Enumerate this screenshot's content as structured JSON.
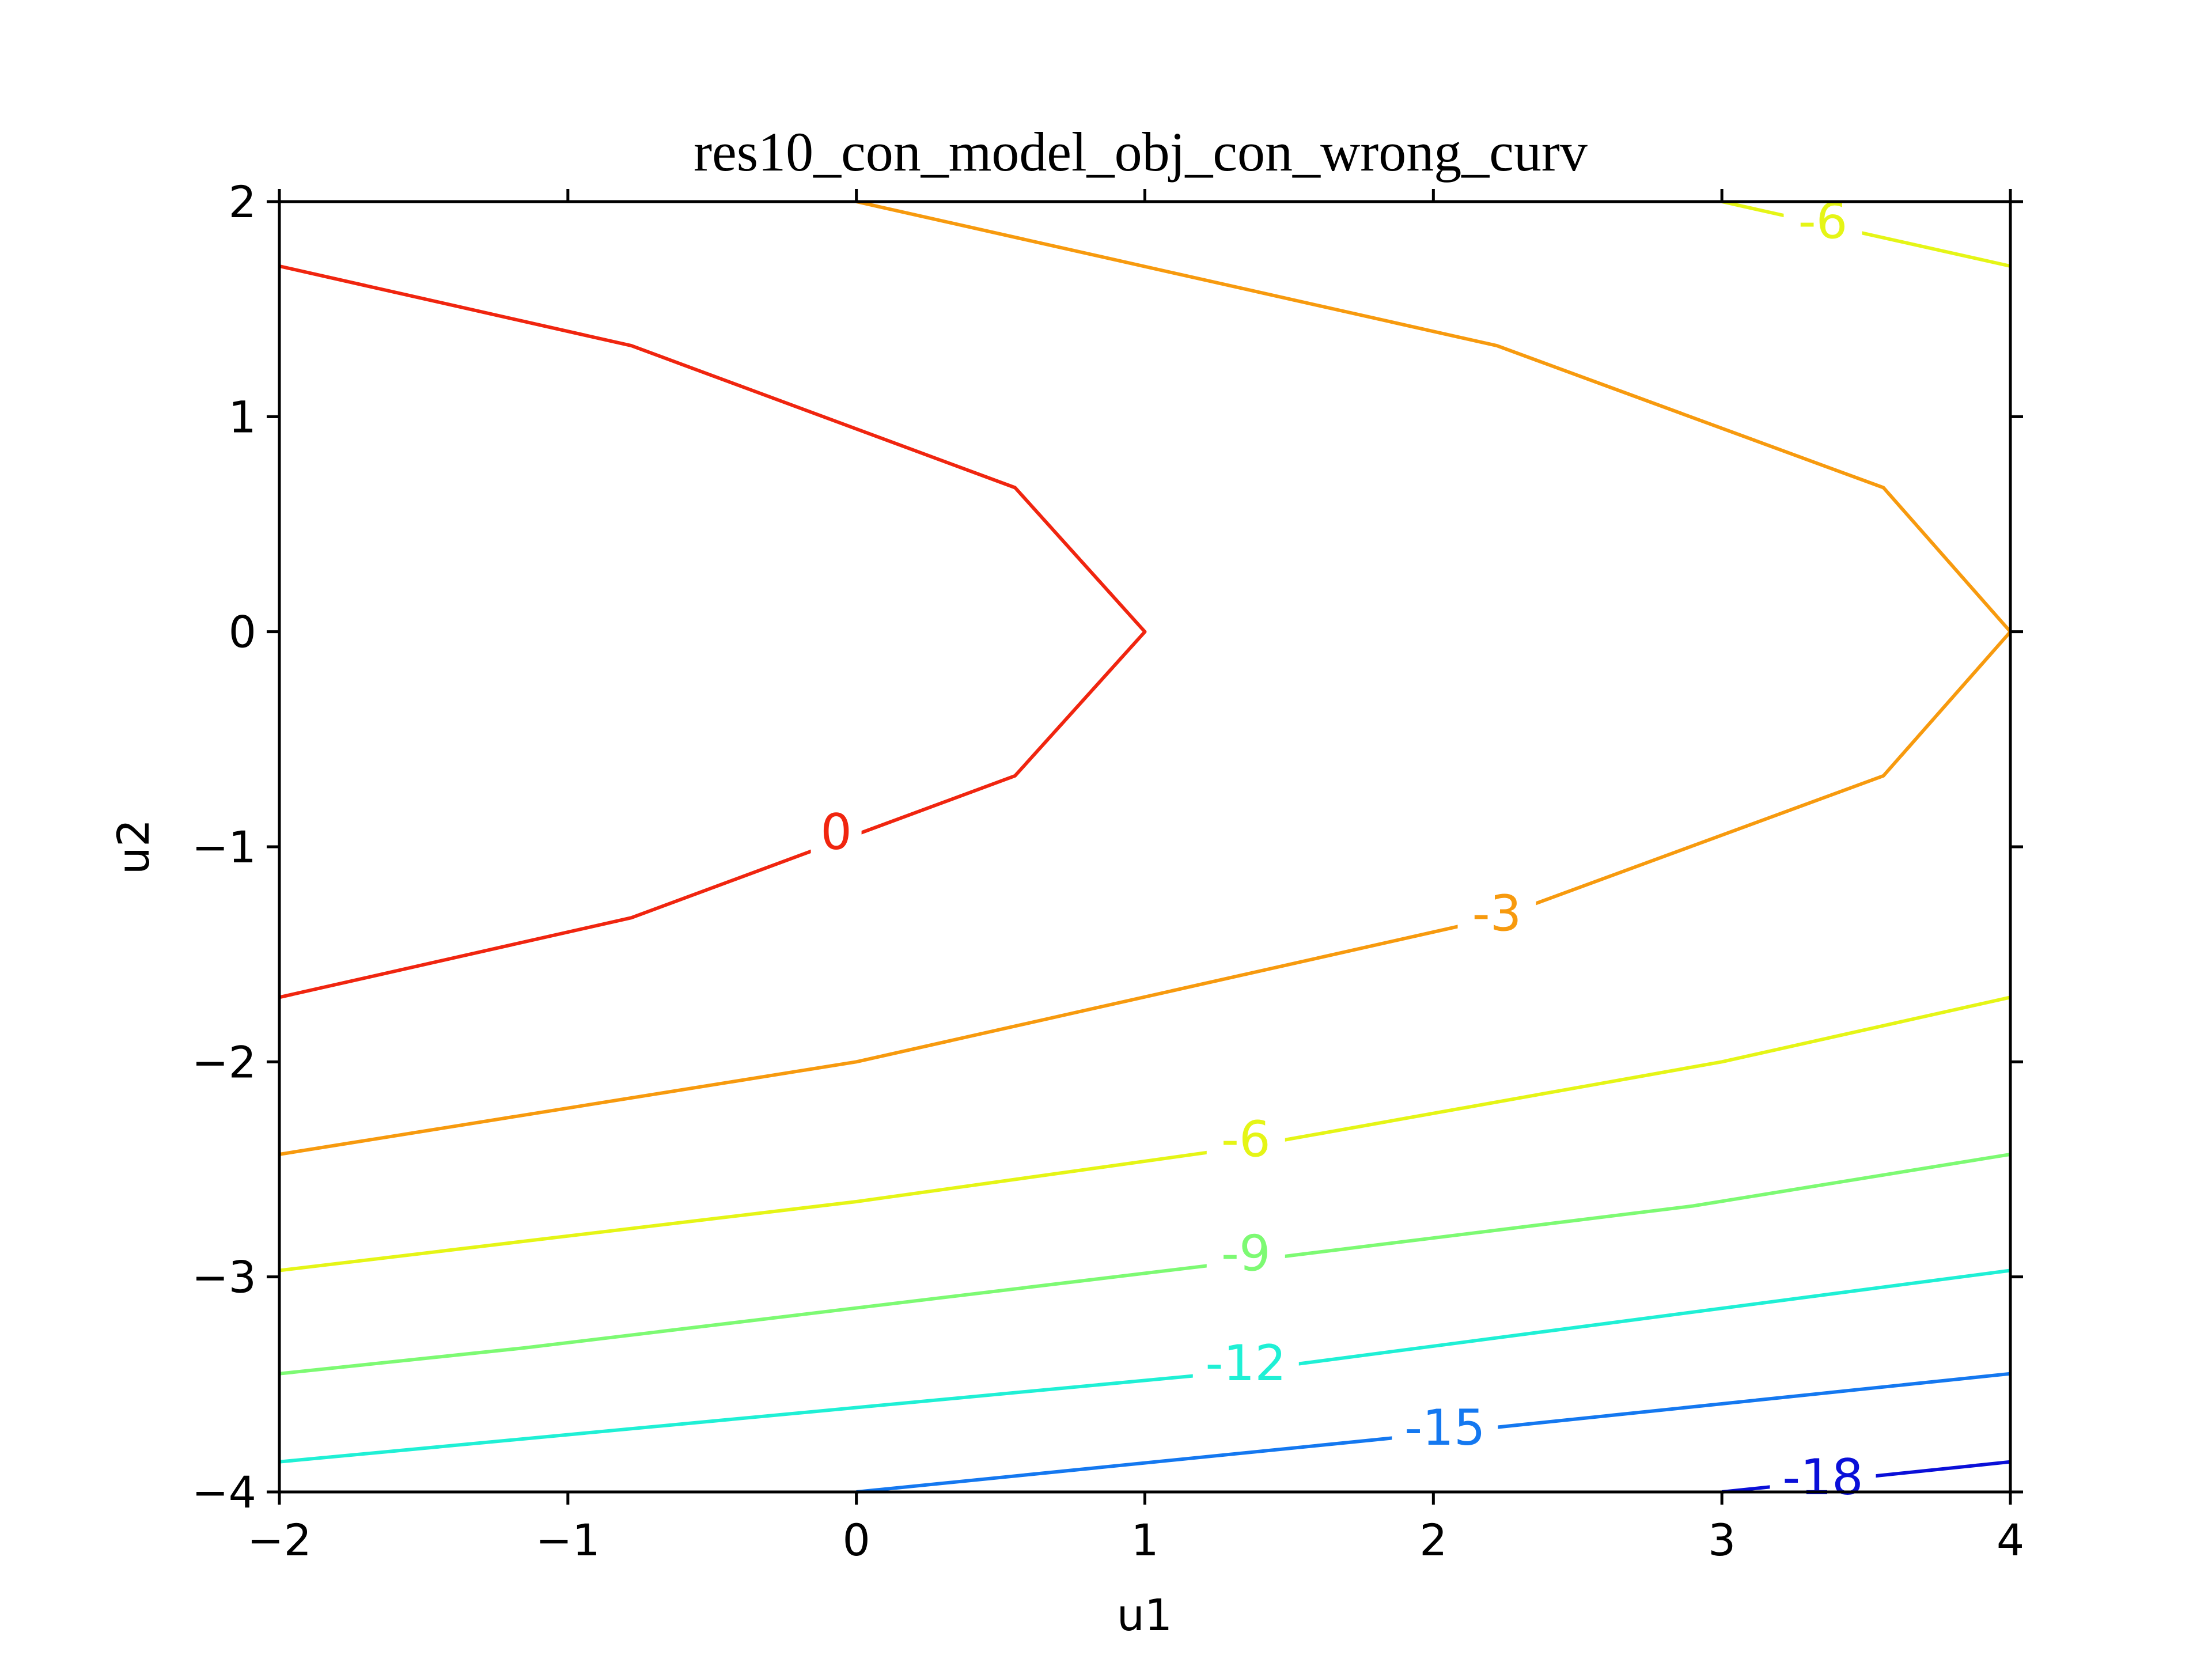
{
  "chart_data": {
    "type": "contour",
    "title": "res10_con_model_obj_con_wrong_curv",
    "xlabel": "u1",
    "ylabel": "u2",
    "xlim": [
      -2,
      4
    ],
    "ylim": [
      -4,
      2
    ],
    "xticks": [
      "−2",
      "−1",
      "0",
      "1",
      "2",
      "3",
      "4"
    ],
    "yticks": [
      "−4",
      "−3",
      "−2",
      "−1",
      "0",
      "1",
      "2"
    ],
    "xtick_values": [
      -2,
      -1,
      0,
      1,
      2,
      3,
      4
    ],
    "ytick_values": [
      -4,
      -3,
      -2,
      -1,
      0,
      1,
      2
    ],
    "grid": false,
    "levels": [
      {
        "label": "0",
        "color": "#f0250f",
        "paths": [
          [
            [
              -2,
              1.7
            ],
            [
              -0.78,
              1.33
            ],
            [
              0.55,
              0.67
            ],
            [
              1.0,
              0.0
            ],
            [
              0.55,
              -0.67
            ],
            [
              -0.78,
              -1.33
            ],
            [
              -2,
              -1.7
            ]
          ]
        ],
        "labels": [
          {
            "x": -0.07,
            "y": -0.93
          }
        ]
      },
      {
        "label": "-3",
        "color": "#f79a0e",
        "paths": [
          [
            [
              0.0,
              2.0
            ],
            [
              2.22,
              1.33
            ],
            [
              3.56,
              0.67
            ],
            [
              4.0,
              0.0
            ],
            [
              3.56,
              -0.67
            ],
            [
              2.22,
              -1.33
            ],
            [
              0.0,
              -2.0
            ],
            [
              -2,
              -2.43
            ]
          ]
        ],
        "labels": [
          {
            "x": 2.22,
            "y": -1.31
          }
        ]
      },
      {
        "label": "-6",
        "color": "#e5f516",
        "paths": [
          [
            [
              3.0,
              2.0
            ],
            [
              4.0,
              1.7
            ]
          ],
          [
            [
              -2,
              -2.97
            ],
            [
              0.0,
              -2.65
            ],
            [
              1.33,
              -2.4
            ],
            [
              3.0,
              -2.0
            ],
            [
              4.0,
              -1.7
            ]
          ]
        ],
        "labels": [
          {
            "x": 3.35,
            "y": 1.91
          },
          {
            "x": 1.35,
            "y": -2.36
          }
        ]
      },
      {
        "label": "-9",
        "color": "#7dfa73",
        "paths": [
          [
            [
              -2,
              -3.45
            ],
            [
              -1.15,
              -3.33
            ],
            [
              1.33,
              -2.93
            ],
            [
              2.9,
              -2.67
            ],
            [
              4.0,
              -2.43
            ]
          ]
        ],
        "labels": [
          {
            "x": 1.35,
            "y": -2.89
          }
        ]
      },
      {
        "label": "-12",
        "color": "#1ff0d5",
        "paths": [
          [
            [
              -2,
              -3.86
            ],
            [
              1.33,
              -3.44
            ],
            [
              4.0,
              -2.97
            ]
          ]
        ],
        "labels": [
          {
            "x": 1.35,
            "y": -3.4
          }
        ]
      },
      {
        "label": "-15",
        "color": "#1478f0",
        "paths": [
          [
            [
              0.0,
              -4.0
            ],
            [
              2.0,
              -3.73
            ],
            [
              4.0,
              -3.45
            ]
          ]
        ],
        "labels": [
          {
            "x": 2.04,
            "y": -3.7
          }
        ]
      },
      {
        "label": "-18",
        "color": "#0a0fd8",
        "paths": [
          [
            [
              3.0,
              -4.0
            ],
            [
              4.0,
              -3.86
            ]
          ]
        ],
        "labels": [
          {
            "x": 3.35,
            "y": -3.93
          }
        ]
      }
    ]
  }
}
